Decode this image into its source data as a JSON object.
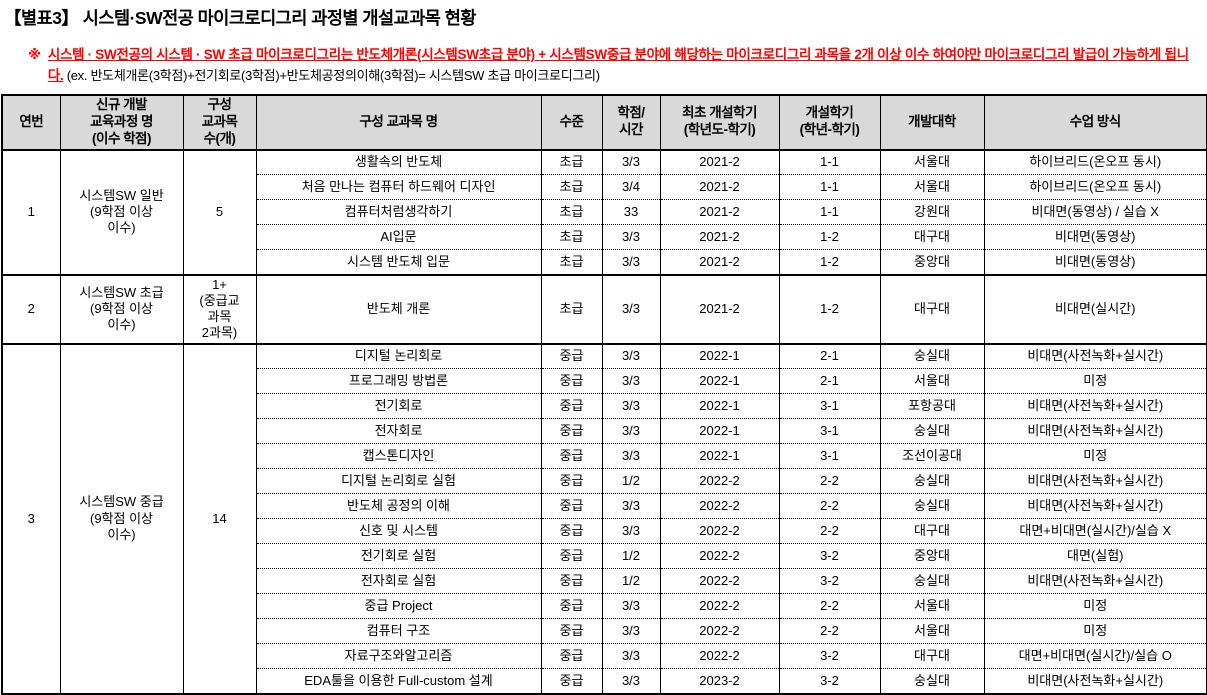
{
  "title": "【별표3】 시스템·SW전공 마이크로디그리 과정별 개설교과목 현황",
  "note": {
    "marker": "※",
    "red_text": "시스템 · SW전공의 시스템 · SW 초급 마이크로디그리는 반도체개론(시스템SW초급 분야) + 시스템SW중급 분야에 해당하는 마이크로디그리 과목을 2개 이상 이수 하여야만 마이크로디그리 발급이 가능하게 됩니다.",
    "black_text": " (ex. 반도체개론(3학점)+전기회로(3학점)+반도체공정의이해(3학점)= 시스템SW 초급 마이크로디그리)"
  },
  "colors": {
    "note_red": "#ff0000",
    "header_bg": "#d9d9d9",
    "border": "#000000"
  },
  "table": {
    "headers": [
      "연번",
      "신규 개발\n교육과정 명\n(이수 학점)",
      "구성\n교과목\n수(개)",
      "구성 교과목 명",
      "수준",
      "학점/\n시간",
      "최초 개설학기\n(학년도-학기)",
      "개설학기\n(학년-학기)",
      "개발대학",
      "수업 방식"
    ],
    "groups": [
      {
        "no": "1",
        "program": "시스템SW 일반\n(9학점 이상\n이수)",
        "count": "5",
        "courses": [
          {
            "name": "생활속의 반도체",
            "level": "초급",
            "credit": "3/3",
            "first": "2021-2",
            "semester": "1-1",
            "univ": "서울대",
            "method": "하이브리드(온오프 동시)"
          },
          {
            "name": "처음 만나는 컴퓨터 하드웨어 디자인",
            "level": "초급",
            "credit": "3/4",
            "first": "2021-2",
            "semester": "1-1",
            "univ": "서울대",
            "method": "하이브리드(온오프 동시)"
          },
          {
            "name": "컴퓨터처럼생각하기",
            "level": "초급",
            "credit": "33",
            "first": "2021-2",
            "semester": "1-1",
            "univ": "강원대",
            "method": "비대면(동영상) / 실습 X"
          },
          {
            "name": "AI입문",
            "level": "초급",
            "credit": "3/3",
            "first": "2021-2",
            "semester": "1-2",
            "univ": "대구대",
            "method": "비대면(동영상)"
          },
          {
            "name": "시스템 반도체 입문",
            "level": "초급",
            "credit": "3/3",
            "first": "2021-2",
            "semester": "1-2",
            "univ": "중앙대",
            "method": "비대면(동영상)"
          }
        ]
      },
      {
        "no": "2",
        "program": "시스템SW 초급\n(9학점 이상\n이수)",
        "count": "1+\n(중급교\n과목\n2과목)",
        "courses": [
          {
            "name": "반도체 개론",
            "level": "초급",
            "credit": "3/3",
            "first": "2021-2",
            "semester": "1-2",
            "univ": "대구대",
            "method": "비대면(실시간)"
          }
        ]
      },
      {
        "no": "3",
        "program": "시스템SW 중급\n(9학점 이상\n이수)",
        "count": "14",
        "courses": [
          {
            "name": "디지털 논리회로",
            "level": "중급",
            "credit": "3/3",
            "first": "2022-1",
            "semester": "2-1",
            "univ": "숭실대",
            "method": "비대면(사전녹화+실시간)"
          },
          {
            "name": "프로그래밍 방법론",
            "level": "중급",
            "credit": "3/3",
            "first": "2022-1",
            "semester": "2-1",
            "univ": "서울대",
            "method": "미정"
          },
          {
            "name": "전기회로",
            "level": "중급",
            "credit": "3/3",
            "first": "2022-1",
            "semester": "3-1",
            "univ": "포항공대",
            "method": "비대면(사전녹화+실시간)"
          },
          {
            "name": "전자회로",
            "level": "중급",
            "credit": "3/3",
            "first": "2022-1",
            "semester": "3-1",
            "univ": "숭실대",
            "method": "비대면(사전녹화+실시간)"
          },
          {
            "name": "캡스톤디자인",
            "level": "중급",
            "credit": "3/3",
            "first": "2022-1",
            "semester": "3-1",
            "univ": "조선이공대",
            "method": "미정"
          },
          {
            "name": "디지털 논리회로 실험",
            "level": "중급",
            "credit": "1/2",
            "first": "2022-2",
            "semester": "2-2",
            "univ": "숭실대",
            "method": "비대면(사전녹화+실시간)"
          },
          {
            "name": "반도체 공정의 이해",
            "level": "중급",
            "credit": "3/3",
            "first": "2022-2",
            "semester": "2-2",
            "univ": "숭실대",
            "method": "비대면(사전녹화+실시간)"
          },
          {
            "name": "신호 및 시스템",
            "level": "중급",
            "credit": "3/3",
            "first": "2022-2",
            "semester": "2-2",
            "univ": "대구대",
            "method": "대면+비대면(실시간)/실습 X"
          },
          {
            "name": "전기회로 실험",
            "level": "중급",
            "credit": "1/2",
            "first": "2022-2",
            "semester": "3-2",
            "univ": "중앙대",
            "method": "대면(실험)"
          },
          {
            "name": "전자회로 실험",
            "level": "중급",
            "credit": "1/2",
            "first": "2022-2",
            "semester": "3-2",
            "univ": "숭실대",
            "method": "비대면(사전녹화+실시간)"
          },
          {
            "name": "중급 Project",
            "level": "중급",
            "credit": "3/3",
            "first": "2022-2",
            "semester": "2-2",
            "univ": "서울대",
            "method": "미정"
          },
          {
            "name": "컴퓨터 구조",
            "level": "중급",
            "credit": "3/3",
            "first": "2022-2",
            "semester": "2-2",
            "univ": "서울대",
            "method": "미정"
          },
          {
            "name": "자료구조와알고리즘",
            "level": "중급",
            "credit": "3/3",
            "first": "2022-2",
            "semester": "3-2",
            "univ": "대구대",
            "method": "대면+비대면(실시간)/실습 O"
          },
          {
            "name": "EDA툴을 이용한 Full-custom 설계",
            "level": "중급",
            "credit": "3/3",
            "first": "2023-2",
            "semester": "3-2",
            "univ": "숭실대",
            "method": "비대면(사전녹화+실시간)"
          }
        ]
      }
    ]
  }
}
